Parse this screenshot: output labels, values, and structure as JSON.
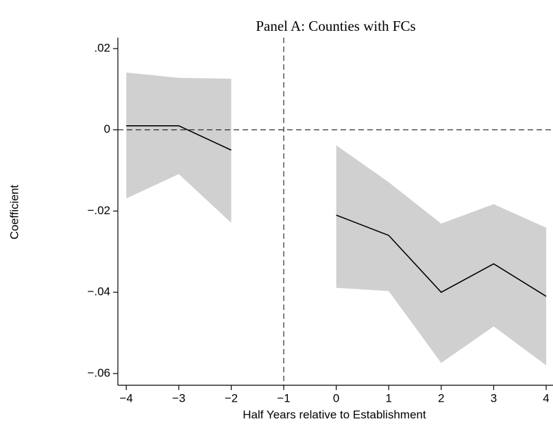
{
  "chart_data": {
    "type": "line",
    "title": "Panel A: Counties with FCs",
    "y_label": "Coefficient",
    "x_label": "Half Years relative to Establishment",
    "x": [
      -4,
      -3,
      -2,
      -1,
      0,
      1,
      2,
      3,
      4
    ],
    "values": [
      0.001,
      0.001,
      -0.005,
      null,
      -0.021,
      -0.026,
      -0.04,
      -0.033,
      -0.041
    ],
    "ci_upper": [
      0.0141,
      0.0128,
      0.0126,
      null,
      -0.0038,
      -0.0129,
      -0.0231,
      -0.0183,
      -0.0241
    ],
    "ci_lower": [
      -0.0169,
      -0.0109,
      -0.0229,
      null,
      -0.0389,
      -0.0397,
      -0.0574,
      -0.0484,
      -0.058
    ],
    "color": "#000000",
    "band_color": "#d0d0d0",
    "xlim": [
      -4.16,
      4.13
    ],
    "ylim": [
      -0.0629,
      0.0227
    ],
    "xticks": [
      {
        "value": -4,
        "label": "−4"
      },
      {
        "value": -3,
        "label": "−3"
      },
      {
        "value": -2,
        "label": "−2"
      },
      {
        "value": -1,
        "label": "−1"
      },
      0,
      1,
      2,
      3,
      4
    ],
    "yticks": [
      {
        "value": 0.02,
        "label": ".02"
      },
      0,
      {
        "value": -0.02,
        "label": "−.02"
      },
      {
        "value": -0.04,
        "label": "−.04"
      },
      {
        "value": -0.06,
        "label": "−.06"
      }
    ],
    "hline": 0,
    "vline": -1
  }
}
